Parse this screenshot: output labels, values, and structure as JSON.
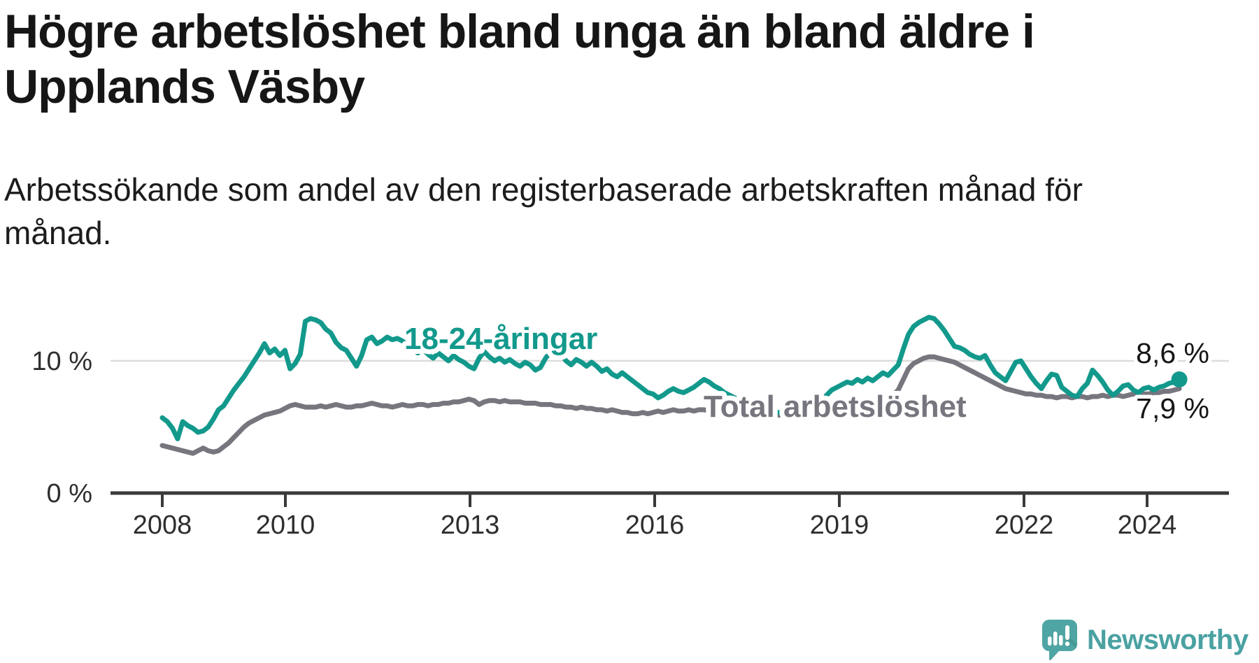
{
  "header": {
    "title_lines": [
      "Högre arbetslöshet bland unga än bland äldre i",
      "Upplands Väsby"
    ],
    "subtitle_lines": [
      "Arbetssökande som andel av den registerbaserade arbetskraften månad för",
      "månad."
    ]
  },
  "footer": {
    "brand": "Newsworthy"
  },
  "colors": {
    "background": "#ffffff",
    "title": "#161616",
    "subtitle": "#1c1c1c",
    "grid": "#dcdcdc",
    "axis": "#3a3a3a",
    "tick_text": "#2e2e2e",
    "value_label": "#151515",
    "youth_line": "#12998c",
    "total_line": "#77757e",
    "logo_teal": "#4fa5a3",
    "logo_text": "#4aa1a2"
  },
  "chart_data": {
    "type": "line",
    "title": "Högre arbetslöshet bland unga än bland äldre i Upplands Väsby",
    "subtitle": "Arbetssökande som andel av den registerbaserade arbetskraften månad för månad.",
    "unit": "%",
    "frequency": "monthly",
    "x_start": "2008-01",
    "x_end": "2024-08",
    "x_tick_years": [
      2008,
      2010,
      2013,
      2016,
      2019,
      2022,
      2024
    ],
    "y_ticks": [
      {
        "value": 0,
        "label": "0 %"
      },
      {
        "value": 10,
        "label": "10 %"
      }
    ],
    "ylim": [
      0,
      14
    ],
    "grid": "y-10-only",
    "legend_position": "inline-labels",
    "series": [
      {
        "name": "18-24-åringar",
        "color": "#12998c",
        "end_value": 8.6,
        "end_label": "8,6 %",
        "end_dot": true,
        "values": [
          5.7,
          5.4,
          4.9,
          4.1,
          5.4,
          5.1,
          4.9,
          4.6,
          4.7,
          5.0,
          5.6,
          6.3,
          6.6,
          7.2,
          7.8,
          8.3,
          8.8,
          9.4,
          10.0,
          10.6,
          11.3,
          10.6,
          10.9,
          10.4,
          10.8,
          9.4,
          9.8,
          10.5,
          13.0,
          13.2,
          13.1,
          12.9,
          12.4,
          12.1,
          11.4,
          11.0,
          10.8,
          10.2,
          9.6,
          10.4,
          11.6,
          11.8,
          11.3,
          11.5,
          11.8,
          11.6,
          11.7,
          11.5,
          11.2,
          10.9,
          10.6,
          10.9,
          10.5,
          10.2,
          10.6,
          10.3,
          10.0,
          10.4,
          10.1,
          9.9,
          9.6,
          9.4,
          10.2,
          10.7,
          10.3,
          10.0,
          10.2,
          9.9,
          10.1,
          9.8,
          9.6,
          9.9,
          9.7,
          9.3,
          9.5,
          10.2,
          10.7,
          10.4,
          10.5,
          10.0,
          9.7,
          10.1,
          9.9,
          9.6,
          9.9,
          9.6,
          9.2,
          9.4,
          9.0,
          8.8,
          9.1,
          8.8,
          8.5,
          8.2,
          7.9,
          7.6,
          7.5,
          7.2,
          7.4,
          7.7,
          7.9,
          7.7,
          7.6,
          7.8,
          8.0,
          8.3,
          8.6,
          8.4,
          8.1,
          7.9,
          7.6,
          7.4,
          7.2,
          7.0,
          6.9,
          6.7,
          6.6,
          6.4,
          6.3,
          6.2,
          6.1,
          6.1,
          6.2,
          6.1,
          6.2,
          6.3,
          6.4,
          6.6,
          6.8,
          7.1,
          7.4,
          7.8,
          8.0,
          8.2,
          8.4,
          8.3,
          8.6,
          8.4,
          8.7,
          8.5,
          8.8,
          9.1,
          8.9,
          9.3,
          9.7,
          10.9,
          12.0,
          12.6,
          12.9,
          13.1,
          13.3,
          13.2,
          12.8,
          12.3,
          11.7,
          11.1,
          11.0,
          10.8,
          10.5,
          10.3,
          10.2,
          10.4,
          9.7,
          9.1,
          8.8,
          8.5,
          9.2,
          9.9,
          10.0,
          9.4,
          8.8,
          8.3,
          7.9,
          8.5,
          9.0,
          8.9,
          8.0,
          7.7,
          7.4,
          7.3,
          7.9,
          8.3,
          9.3,
          8.9,
          8.4,
          7.8,
          7.4,
          7.7,
          8.1,
          8.2,
          7.8,
          7.6,
          7.9,
          8.0,
          7.8,
          8.0,
          8.1,
          8.3,
          8.4,
          8.6
        ]
      },
      {
        "name": "Total arbetslöshet",
        "color": "#77757e",
        "end_value": 7.9,
        "end_label": "7,9 %",
        "end_dot": false,
        "values": [
          3.6,
          3.5,
          3.4,
          3.3,
          3.2,
          3.1,
          3.0,
          3.2,
          3.4,
          3.2,
          3.1,
          3.2,
          3.5,
          3.8,
          4.2,
          4.6,
          5.0,
          5.3,
          5.5,
          5.7,
          5.9,
          6.0,
          6.1,
          6.2,
          6.4,
          6.6,
          6.7,
          6.6,
          6.5,
          6.5,
          6.5,
          6.6,
          6.5,
          6.6,
          6.7,
          6.6,
          6.5,
          6.5,
          6.6,
          6.6,
          6.7,
          6.8,
          6.7,
          6.6,
          6.6,
          6.5,
          6.6,
          6.7,
          6.6,
          6.6,
          6.7,
          6.7,
          6.6,
          6.7,
          6.7,
          6.8,
          6.8,
          6.9,
          6.9,
          7.0,
          7.1,
          7.0,
          6.7,
          6.9,
          7.0,
          7.0,
          6.9,
          7.0,
          6.9,
          6.9,
          6.9,
          6.8,
          6.8,
          6.8,
          6.7,
          6.7,
          6.7,
          6.6,
          6.6,
          6.5,
          6.5,
          6.4,
          6.5,
          6.4,
          6.4,
          6.3,
          6.3,
          6.2,
          6.3,
          6.2,
          6.1,
          6.1,
          6.0,
          6.0,
          6.1,
          6.0,
          6.1,
          6.2,
          6.1,
          6.2,
          6.3,
          6.2,
          6.2,
          6.3,
          6.2,
          6.3,
          6.3,
          6.2,
          6.2,
          6.2,
          6.1,
          6.2,
          6.1,
          6.1,
          6.0,
          6.1,
          6.0,
          5.9,
          6.0,
          5.9,
          5.9,
          5.9,
          5.8,
          5.9,
          5.8,
          5.8,
          5.9,
          5.9,
          5.8,
          5.9,
          6.0,
          6.1,
          6.2,
          6.3,
          6.5,
          6.6,
          6.7,
          6.9,
          7.0,
          7.1,
          7.0,
          7.1,
          7.2,
          7.4,
          7.8,
          8.6,
          9.4,
          9.8,
          10.0,
          10.2,
          10.3,
          10.3,
          10.2,
          10.1,
          10.0,
          9.9,
          9.7,
          9.5,
          9.3,
          9.1,
          8.9,
          8.7,
          8.5,
          8.3,
          8.1,
          7.9,
          7.8,
          7.7,
          7.6,
          7.5,
          7.5,
          7.4,
          7.4,
          7.3,
          7.3,
          7.2,
          7.3,
          7.3,
          7.2,
          7.3,
          7.3,
          7.2,
          7.3,
          7.3,
          7.4,
          7.3,
          7.4,
          7.4,
          7.3,
          7.4,
          7.5,
          7.4,
          7.5,
          7.5,
          7.6,
          7.6,
          7.7,
          7.7,
          7.8,
          7.9
        ]
      }
    ]
  }
}
